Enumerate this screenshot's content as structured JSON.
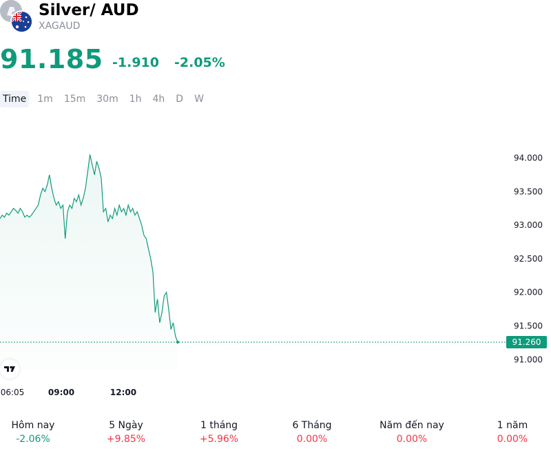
{
  "symbol": {
    "name": "Silver/ AUD",
    "ticker": "XAGAUD"
  },
  "quote": {
    "price": "91.185",
    "change": "-1.910",
    "change_percent": "-2.05%",
    "color": "#0f9a7b"
  },
  "intervals": [
    {
      "label": "Time",
      "active": true
    },
    {
      "label": "1m"
    },
    {
      "label": "15m"
    },
    {
      "label": "30m"
    },
    {
      "label": "1h"
    },
    {
      "label": "4h"
    },
    {
      "label": "D"
    },
    {
      "label": "W"
    }
  ],
  "chart_data": {
    "type": "area",
    "x_ticks": [
      "06:05",
      "09:00",
      "12:00"
    ],
    "y_ticks": [
      "94.000",
      "93.500",
      "93.000",
      "92.500",
      "92.000",
      "91.500",
      "91.000"
    ],
    "ylim": [
      90.85,
      94.2
    ],
    "last_price_label": "91.260",
    "last_price": 91.26,
    "line_color": "#0f9a7b",
    "series": [
      {
        "values": [
          93.1,
          93.15,
          93.12,
          93.18,
          93.15,
          93.2,
          93.25,
          93.22,
          93.18,
          93.25,
          93.2,
          93.12,
          93.15,
          93.12,
          93.15,
          93.2,
          93.25,
          93.3,
          93.45,
          93.55,
          93.5,
          93.6,
          93.75,
          93.55,
          93.4,
          93.3,
          93.35,
          93.25,
          93.3,
          92.8,
          93.2,
          93.3,
          93.25,
          93.4,
          93.35,
          93.45,
          93.3,
          93.4,
          93.55,
          93.8,
          94.05,
          93.9,
          93.75,
          93.95,
          93.85,
          93.7,
          93.2,
          93.25,
          93.05,
          93.15,
          93.1,
          93.25,
          93.15,
          93.3,
          93.2,
          93.25,
          93.15,
          93.3,
          93.2,
          93.25,
          93.15,
          93.2,
          93.1,
          93.0,
          92.85,
          92.8,
          92.65,
          92.5,
          92.3,
          91.7,
          91.9,
          91.55,
          91.7,
          91.95,
          92.0,
          91.75,
          91.45,
          91.55,
          91.35,
          91.26
        ]
      }
    ]
  },
  "performance": [
    {
      "label": "Hôm nay",
      "value": "-2.06%",
      "color": "#0f9a7b"
    },
    {
      "label": "5 Ngày",
      "value": "+9.85%",
      "color": "#f23645"
    },
    {
      "label": "1 tháng",
      "value": "+5.96%",
      "color": "#f23645"
    },
    {
      "label": "6 Tháng",
      "value": "0.00%",
      "color": "#f23645"
    },
    {
      "label": "Năm đến nay",
      "value": "0.00%",
      "color": "#f23645"
    },
    {
      "label": "1 năm",
      "value": "0.00%",
      "color": "#f23645"
    }
  ]
}
